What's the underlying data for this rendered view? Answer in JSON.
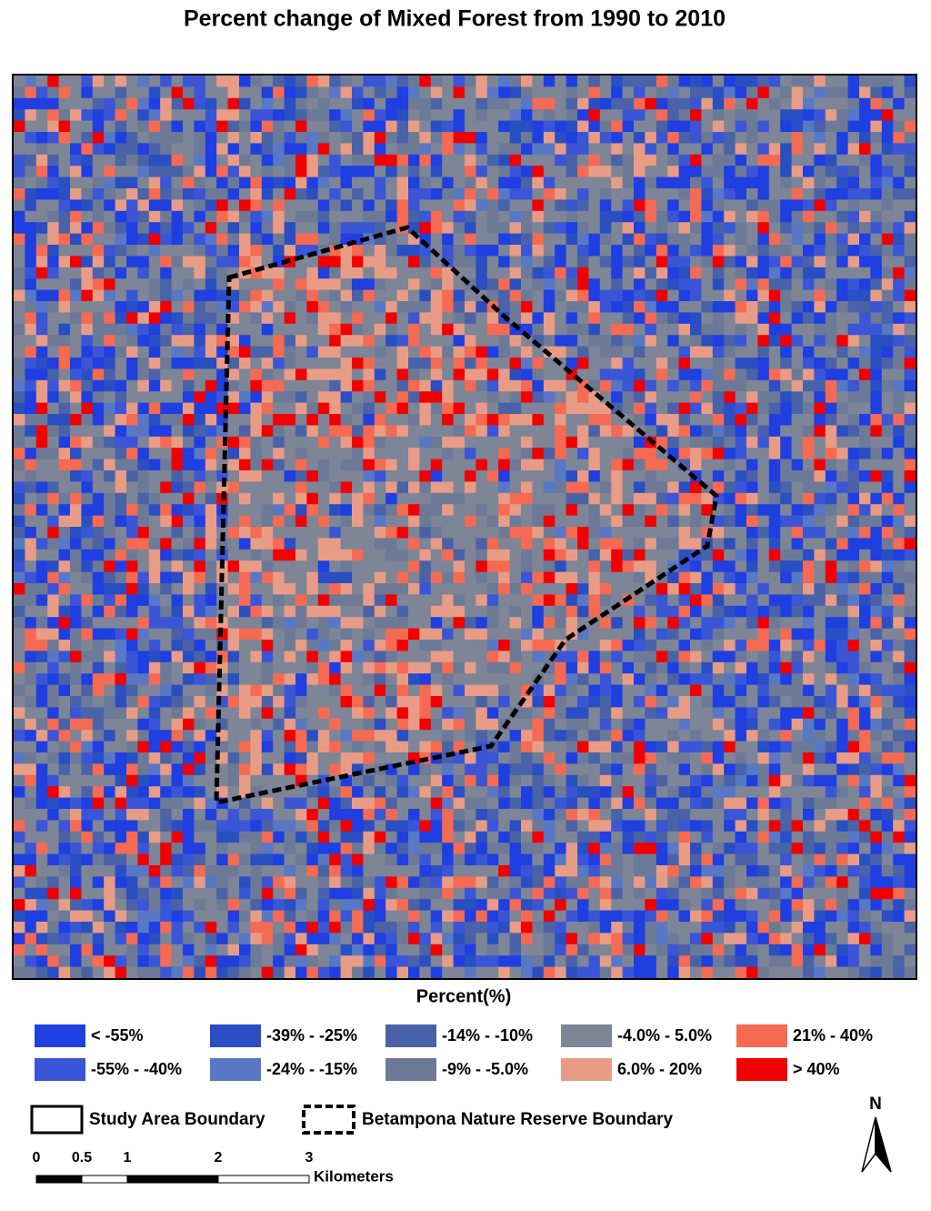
{
  "title": "Percent change of Mixed Forest from 1990 to 2010",
  "legend": {
    "title": "Percent(%)",
    "items": [
      {
        "label": "< -55%",
        "color": "#1f3fe0"
      },
      {
        "label": "-55% - -40%",
        "color": "#3a56d6"
      },
      {
        "label": "-39% - -25%",
        "color": "#2a4fc2"
      },
      {
        "label": "-24% - -15%",
        "color": "#5878c6"
      },
      {
        "label": "-14% - -10%",
        "color": "#4a62a8"
      },
      {
        "label": "-9% - -5.0%",
        "color": "#6c7a98"
      },
      {
        "label": "-4.0% - 5.0%",
        "color": "#7d8597"
      },
      {
        "label": "6.0% - 20%",
        "color": "#e89c86"
      },
      {
        "label": "21% - 40%",
        "color": "#f56a52"
      },
      {
        "label": "> 40%",
        "color": "#f00000"
      }
    ]
  },
  "boundaries": {
    "study_area": "Study Area Boundary",
    "reserve": "Betampona Nature Reserve Boundary"
  },
  "scale_bar": {
    "ticks": [
      0,
      0.5,
      1,
      2,
      3
    ],
    "unit": "Kilometers"
  },
  "north": "N"
}
